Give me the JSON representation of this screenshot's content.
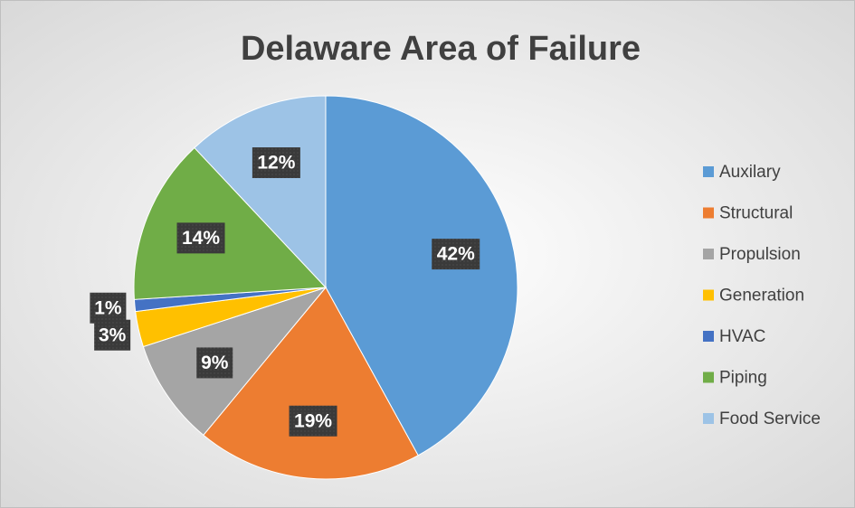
{
  "chart_data": {
    "type": "pie",
    "title": "Delaware Area of Failure",
    "categories": [
      "Auxilary",
      "Structural",
      "Propulsion",
      "Generation",
      "HVAC",
      "Piping",
      "Food Service"
    ],
    "values": [
      42,
      19,
      9,
      3,
      1,
      14,
      12
    ],
    "value_labels": [
      "42%",
      "19%",
      "9%",
      "3%",
      "1%",
      "14%",
      "12%"
    ],
    "colors": [
      "#5b9bd5",
      "#ed7d31",
      "#a5a5a5",
      "#ffc000",
      "#4472c4",
      "#70ad47",
      "#9dc3e6"
    ],
    "legend": "right"
  }
}
